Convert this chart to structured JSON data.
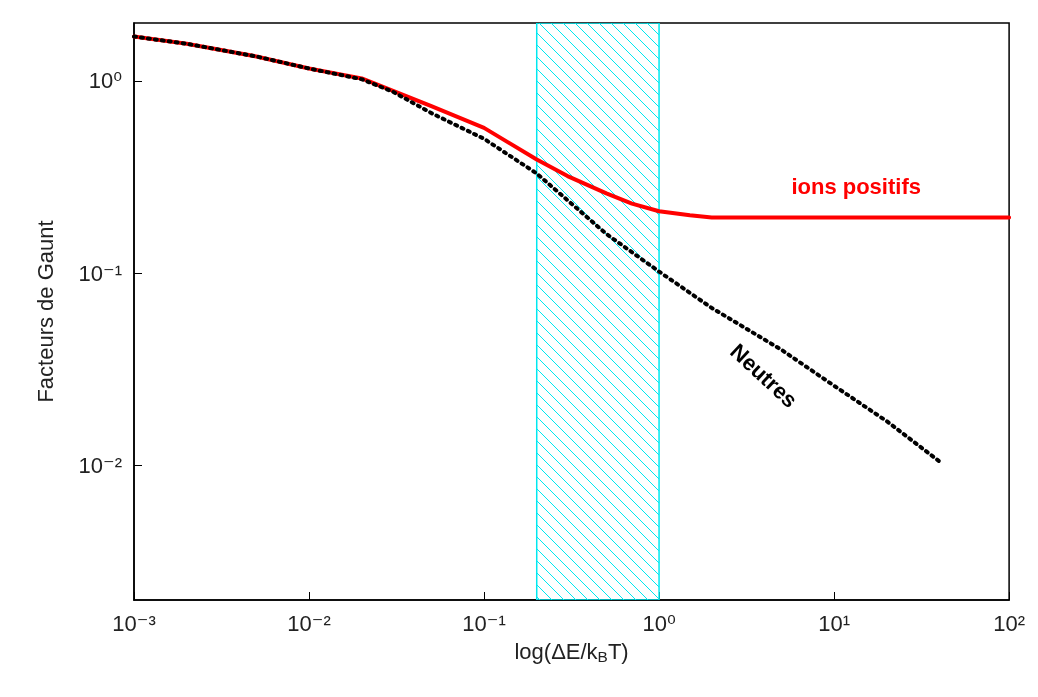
{
  "chart_data": {
    "type": "line",
    "xlabel": "log(ΔE/k$_{B}$T)",
    "ylabel": "Facteurs de Gaunt",
    "log": "xy",
    "grid": false,
    "marker": "none",
    "xlim": [
      0.001,
      100
    ],
    "xticks": [
      {
        "value": 0.001,
        "label": "10⁻³"
      },
      {
        "value": 0.01,
        "label": "10⁻²"
      },
      {
        "value": 0.1,
        "label": "10⁻¹"
      },
      {
        "value": 1,
        "label": "10⁰"
      },
      {
        "value": 10,
        "label": "10¹"
      },
      {
        "value": 100,
        "label": "10²"
      }
    ],
    "ylim": [
      0.002,
      2
    ],
    "yticks": [
      {
        "value": 0.01,
        "label": "10⁻²"
      },
      {
        "value": 0.1,
        "label": "10⁻¹"
      },
      {
        "value": 1,
        "label": "10⁰"
      }
    ],
    "bands": [
      {
        "axis": "x",
        "from": 0.2,
        "to": 1,
        "color": "#00e8f0"
      }
    ],
    "series": [
      {
        "name": "ions positifs",
        "color": "#ff0000",
        "line_style": "solid",
        "x": [
          0.001,
          0.002,
          0.005,
          0.01,
          0.02,
          0.05,
          0.1,
          0.2,
          0.3,
          0.5,
          0.7,
          1,
          1.5,
          2,
          5,
          10,
          100
        ],
        "values": [
          1.7,
          1.56,
          1.34,
          1.16,
          1.03,
          0.74,
          0.57,
          0.39,
          0.32,
          0.26,
          0.23,
          0.21,
          0.2,
          0.195,
          0.195,
          0.195,
          0.195
        ]
      },
      {
        "name": "Neutres",
        "color": "#000000",
        "line_style": "dotted",
        "x": [
          0.001,
          0.002,
          0.005,
          0.01,
          0.02,
          0.03,
          0.05,
          0.1,
          0.2,
          0.5,
          1,
          2,
          5,
          10,
          20,
          40
        ],
        "values": [
          1.7,
          1.56,
          1.34,
          1.16,
          1.02,
          0.88,
          0.68,
          0.5,
          0.33,
          0.16,
          0.102,
          0.066,
          0.04,
          0.026,
          0.017,
          0.0105
        ]
      }
    ]
  }
}
